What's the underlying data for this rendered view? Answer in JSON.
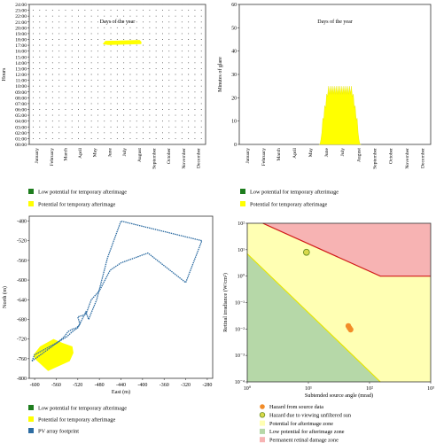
{
  "chart_data": [
    {
      "type": "scatter",
      "ylabel": "Hours",
      "xlabel": "Days of the year",
      "y_ticks": [
        "00:00",
        "01:00",
        "02:00",
        "03:00",
        "04:00",
        "05:00",
        "06:00",
        "07:00",
        "08:00",
        "09:00",
        "10:00",
        "11:00",
        "12:00",
        "13:00",
        "14:00",
        "15:00",
        "16:00",
        "17:00",
        "18:00",
        "19:00",
        "20:00",
        "21:00",
        "22:00",
        "23:00",
        "24:00"
      ],
      "x_ticks": [
        "January",
        "February",
        "March",
        "April",
        "May",
        "June",
        "July",
        "August",
        "September",
        "October",
        "November",
        "December"
      ],
      "ylim": [
        0,
        24
      ],
      "glare_band": {
        "start_day": 152,
        "end_day": 232,
        "hour_low": 17.2,
        "hour_high": 17.9
      },
      "legend": [
        {
          "label": "Low potential for temporary afterimage",
          "color": "#1e7d1e"
        },
        {
          "label": "Potential for temporary afterimage",
          "color": "#ffff00"
        }
      ]
    },
    {
      "type": "bar",
      "ylabel": "Minutes of glare",
      "xlabel": "Days of the year",
      "y_ticks": [
        "0",
        "10",
        "20",
        "30",
        "40",
        "50",
        "60"
      ],
      "ylim": [
        0,
        60
      ],
      "x_ticks": [
        "January",
        "February",
        "March",
        "April",
        "May",
        "June",
        "July",
        "August",
        "September",
        "October",
        "November",
        "December"
      ],
      "glare_minutes": {
        "start_day": 152,
        "end_day": 232,
        "peak": 25
      },
      "legend": [
        {
          "label": "Low potential for temporary afterimage",
          "color": "#1e7d1e"
        },
        {
          "label": "Potential for temporary afterimage",
          "color": "#ffff00"
        }
      ]
    },
    {
      "type": "area",
      "xlabel": "East (m)",
      "ylabel": "North (m)",
      "x_ticks": [
        "-600",
        "-580",
        "-560",
        "-540",
        "-520",
        "-500",
        "-480",
        "-460",
        "-440",
        "-420",
        "-400",
        "-380",
        "-360",
        "-340",
        "-320",
        "-300",
        "-280"
      ],
      "y_ticks": [
        "-800",
        "-780",
        "-760",
        "-740",
        "-720",
        "-700",
        "-680",
        "-660",
        "-640",
        "-620",
        "-600",
        "-580",
        "-560",
        "-540",
        "-520",
        "-500",
        "-480"
      ],
      "xlim": [
        -610,
        -270
      ],
      "ylim": [
        -800,
        -470
      ],
      "footprint": [
        [
          -605,
          -765
        ],
        [
          -555,
          -725
        ],
        [
          -545,
          -715
        ],
        [
          -538,
          -705
        ],
        [
          -530,
          -700
        ],
        [
          -522,
          -697
        ],
        [
          -516,
          -690
        ],
        [
          -520,
          -675
        ],
        [
          -505,
          -670
        ],
        [
          -495,
          -640
        ],
        [
          -480,
          -622
        ],
        [
          -460,
          -580
        ],
        [
          -440,
          -565
        ],
        [
          -390,
          -545
        ],
        [
          -320,
          -605
        ],
        [
          -290,
          -520
        ],
        [
          -440,
          -480
        ],
        [
          -465,
          -555
        ],
        [
          -485,
          -640
        ],
        [
          -500,
          -680
        ],
        [
          -505,
          -665
        ],
        [
          -520,
          -697
        ],
        [
          -530,
          -705
        ],
        [
          -540,
          -715
        ],
        [
          -558,
          -727
        ],
        [
          -600,
          -752
        ],
        [
          -605,
          -765
        ]
      ],
      "glare_zone": [
        [
          -600,
          -760
        ],
        [
          -585,
          -775
        ],
        [
          -575,
          -785
        ],
        [
          -565,
          -780
        ],
        [
          -545,
          -770
        ],
        [
          -535,
          -765
        ],
        [
          -528,
          -748
        ],
        [
          -530,
          -735
        ],
        [
          -548,
          -728
        ],
        [
          -565,
          -720
        ],
        [
          -590,
          -735
        ],
        [
          -602,
          -752
        ]
      ],
      "legend": [
        {
          "label": "Low potential for temporary afterimage",
          "color": "#1e7d1e"
        },
        {
          "label": "Potential for temporary afterimage",
          "color": "#ffff00"
        },
        {
          "label": "PV array footprint",
          "color": "#2d6ca2"
        }
      ]
    },
    {
      "type": "scatter",
      "xlabel": "Subtended source angle (mrad)",
      "ylabel": "Retinal irradiance (W/cm²)",
      "x_scale": "log",
      "y_scale": "log",
      "xlim": [
        1,
        1000
      ],
      "ylim": [
        0.0001,
        100
      ],
      "x_ticks": [
        "10⁰",
        "10¹",
        "10²",
        "10³"
      ],
      "y_ticks": [
        "10⁻⁴",
        "10⁻³",
        "10⁻²",
        "10⁻¹",
        "10⁰",
        "10¹",
        "10²"
      ],
      "retinal_damage_threshold": [
        [
          1.8,
          100
        ],
        [
          150,
          1
        ],
        [
          1000,
          1
        ]
      ],
      "afterimage_threshold": [
        [
          1,
          7
        ],
        [
          150,
          0.0001
        ]
      ],
      "points": [
        {
          "name": "sun",
          "x": 9.3,
          "y": 8
        },
        {
          "name": "source",
          "x": 45,
          "y": 0.013
        },
        {
          "name": "source",
          "x": 47,
          "y": 0.011
        },
        {
          "name": "source",
          "x": 49,
          "y": 0.0095
        }
      ],
      "legend": [
        {
          "label": "Hazard from source data",
          "color": "#f28c28"
        },
        {
          "label": "Hazard due to viewing unfiltered sun",
          "color": "#d9d94a"
        },
        {
          "label": "Potential for afterimage zone",
          "color": "#ffffb3"
        },
        {
          "label": "Low potential for afterimage zone",
          "color": "#b6d8a8"
        },
        {
          "label": "Permanent retinal damage zone",
          "color": "#f7b3b3"
        }
      ]
    }
  ]
}
